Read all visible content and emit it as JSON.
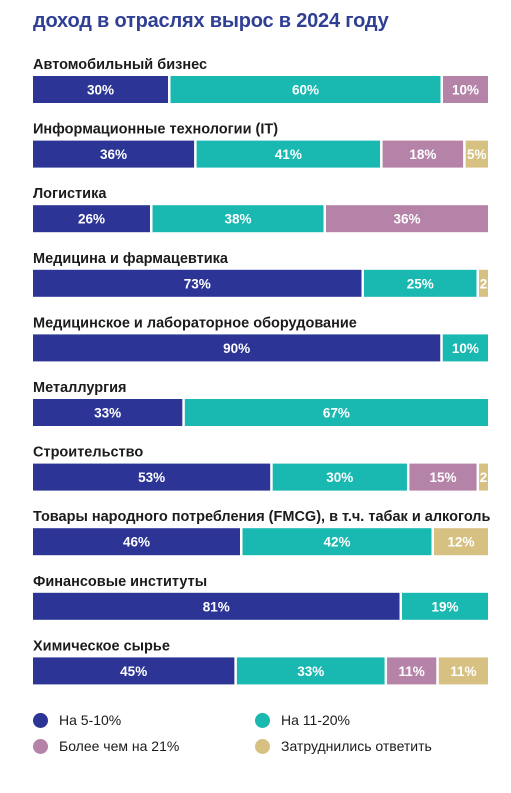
{
  "chart_data": {
    "type": "bar",
    "orientation": "horizontal",
    "stacked": true,
    "title": "доход в отраслях вырос в 2024 году",
    "categories": [
      "Автомобильный бизнес",
      "Информационные технологии (IT)",
      "Логистика",
      "Медицина и фармацевтика",
      "Медицинское и лабораторное оборудование",
      "Металлургия",
      "Строительство",
      "Товары народного потребления (FMCG), в т.ч. табак и алкоголь",
      "Финансовые институты",
      "Химическое сырье"
    ],
    "series": [
      {
        "name": "На 5-10%",
        "color": "#2c3596",
        "values": [
          30,
          36,
          26,
          73,
          90,
          33,
          53,
          46,
          81,
          45
        ]
      },
      {
        "name": "На 11-20%",
        "color": "#19b8b0",
        "values": [
          60,
          41,
          38,
          25,
          10,
          67,
          30,
          42,
          19,
          33
        ]
      },
      {
        "name": "Более чем на 21%",
        "color": "#b583a8",
        "values": [
          10,
          18,
          36,
          0,
          0,
          0,
          15,
          0,
          0,
          11
        ]
      },
      {
        "name": "Затруднились ответить",
        "color": "#d6c182",
        "values": [
          0,
          5,
          0,
          2,
          0,
          0,
          2,
          12,
          0,
          11
        ]
      }
    ],
    "data_labels": [
      [
        "30%",
        "36%",
        "26%",
        "73%",
        "90%",
        "33%",
        "53%",
        "46%",
        "81%",
        "45%"
      ],
      [
        "60%",
        "41%",
        "38%",
        "25%",
        "10%",
        "67%",
        "30%",
        "42%",
        "19%",
        "33%"
      ],
      [
        "10%",
        "18%",
        "36%",
        "",
        "",
        "",
        "15%",
        "",
        "",
        "11%"
      ],
      [
        "",
        "5%",
        "",
        "2",
        "",
        "",
        "2",
        "12%",
        "",
        "11%"
      ]
    ],
    "xlim": [
      0,
      100
    ],
    "legend_position": "bottom",
    "grid": false
  },
  "legend": [
    {
      "label": "На 5-10%",
      "color": "#2c3596"
    },
    {
      "label": "На 11-20%",
      "color": "#19b8b0"
    },
    {
      "label": "Более чем на 21%",
      "color": "#b583a8"
    },
    {
      "label": "Затруднились ответить",
      "color": "#d6c182"
    }
  ]
}
